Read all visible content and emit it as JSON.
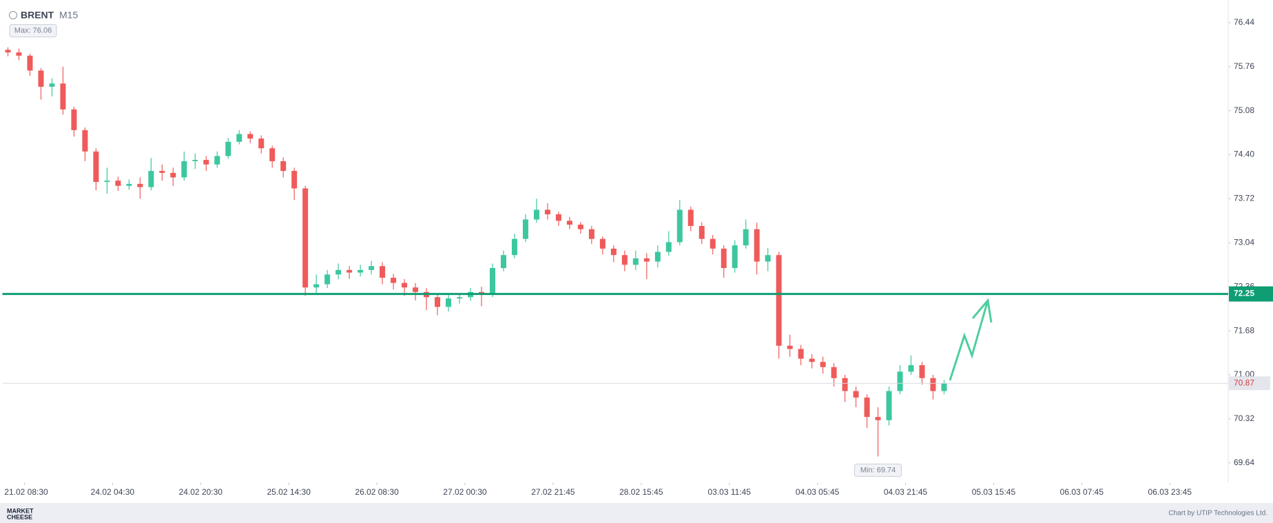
{
  "chart_data": {
    "type": "candlestick",
    "title": "BRENT",
    "subtitle": "M15",
    "up_color": "#3cc79f",
    "down_color": "#ef5a5a",
    "open": [
      76.02,
      75.98,
      75.93,
      75.7,
      75.45,
      75.5,
      75.1,
      74.78,
      74.45,
      73.98,
      74.0,
      73.92,
      73.95,
      73.9,
      74.15,
      74.12,
      74.05,
      74.3,
      74.32,
      74.25,
      74.38,
      74.6,
      74.72,
      74.65,
      74.5,
      74.3,
      74.15,
      73.88,
      72.35,
      72.4,
      72.55,
      72.62,
      72.58,
      72.62,
      72.68,
      72.5,
      72.42,
      72.35,
      72.28,
      72.2,
      72.05,
      72.18,
      72.2,
      72.28,
      72.25,
      72.65,
      72.85,
      73.1,
      73.4,
      73.55,
      73.48,
      73.38,
      73.32,
      73.25,
      73.1,
      72.95,
      72.85,
      72.7,
      72.8,
      72.75,
      72.9,
      73.05,
      73.55,
      73.3,
      73.1,
      72.95,
      72.65,
      73.0,
      73.25,
      72.75,
      72.85,
      71.45,
      71.4,
      71.25,
      71.2,
      71.12,
      70.95,
      70.75,
      70.65,
      70.35,
      70.3,
      70.75,
      71.05,
      71.15,
      70.95,
      70.75
    ],
    "high": [
      76.06,
      76.04,
      75.96,
      75.74,
      75.58,
      75.76,
      75.14,
      74.82,
      74.5,
      74.2,
      74.06,
      74.02,
      74.05,
      74.35,
      74.25,
      74.2,
      74.45,
      74.42,
      74.38,
      74.45,
      74.66,
      74.78,
      74.76,
      74.7,
      74.54,
      74.36,
      74.2,
      73.92,
      72.55,
      72.62,
      72.72,
      72.68,
      72.7,
      72.76,
      72.74,
      72.56,
      72.48,
      72.42,
      72.34,
      72.26,
      72.24,
      72.26,
      72.34,
      72.36,
      72.72,
      72.92,
      73.18,
      73.48,
      73.72,
      73.65,
      73.52,
      73.44,
      73.36,
      73.3,
      73.14,
      73.0,
      72.92,
      72.92,
      72.88,
      73.0,
      73.22,
      73.7,
      73.6,
      73.36,
      73.16,
      73.0,
      73.08,
      73.4,
      73.35,
      72.96,
      72.9,
      71.62,
      71.46,
      71.32,
      71.28,
      71.18,
      71.0,
      70.82,
      70.7,
      70.5,
      70.82,
      71.15,
      71.3,
      71.2,
      71.0,
      70.92
    ],
    "low": [
      75.92,
      75.86,
      75.62,
      75.25,
      75.3,
      75.02,
      74.68,
      74.3,
      73.85,
      73.8,
      73.84,
      73.86,
      73.72,
      73.85,
      74.0,
      73.92,
      74.0,
      74.18,
      74.15,
      74.2,
      74.34,
      74.56,
      74.58,
      74.42,
      74.2,
      74.05,
      73.7,
      72.22,
      72.25,
      72.34,
      72.48,
      72.48,
      72.52,
      72.55,
      72.4,
      72.32,
      72.22,
      72.15,
      72.0,
      71.92,
      71.98,
      72.1,
      72.14,
      72.06,
      72.2,
      72.6,
      72.8,
      73.05,
      73.35,
      73.4,
      73.3,
      73.25,
      73.18,
      73.02,
      72.86,
      72.74,
      72.6,
      72.62,
      72.48,
      72.66,
      72.84,
      73.0,
      73.22,
      73.02,
      72.86,
      72.5,
      72.58,
      72.95,
      72.55,
      72.6,
      71.25,
      71.28,
      71.15,
      71.1,
      71.02,
      70.82,
      70.58,
      70.5,
      70.18,
      69.74,
      70.22,
      70.7,
      71.0,
      70.85,
      70.62,
      70.7
    ],
    "close": [
      75.98,
      75.93,
      75.7,
      75.45,
      75.5,
      75.1,
      74.78,
      74.45,
      73.98,
      74.0,
      73.92,
      73.95,
      73.9,
      74.15,
      74.12,
      74.05,
      74.3,
      74.32,
      74.25,
      74.38,
      74.6,
      74.72,
      74.65,
      74.5,
      74.3,
      74.15,
      73.88,
      72.35,
      72.4,
      72.55,
      72.62,
      72.58,
      72.62,
      72.68,
      72.5,
      72.42,
      72.35,
      72.28,
      72.2,
      72.05,
      72.18,
      72.2,
      72.28,
      72.25,
      72.65,
      72.85,
      73.1,
      73.4,
      73.55,
      73.48,
      73.38,
      73.32,
      73.25,
      73.1,
      72.95,
      72.85,
      72.7,
      72.8,
      72.75,
      72.9,
      73.05,
      73.55,
      73.3,
      73.1,
      72.95,
      72.65,
      73.0,
      73.25,
      72.75,
      72.85,
      71.45,
      71.4,
      71.25,
      71.2,
      71.12,
      70.95,
      70.75,
      70.65,
      70.35,
      70.3,
      70.75,
      71.05,
      71.15,
      70.95,
      70.75,
      70.87
    ],
    "xlim": [
      0,
      111.3
    ],
    "xticks": [
      {
        "value": 2,
        "label": "21.02 08:30"
      },
      {
        "value": 10,
        "label": "24.02 04:30"
      },
      {
        "value": 18,
        "label": "24.02 20:30"
      },
      {
        "value": 26,
        "label": "25.02 14:30"
      },
      {
        "value": 34,
        "label": "26.02 08:30"
      },
      {
        "value": 42,
        "label": "27.02 00:30"
      },
      {
        "value": 50,
        "label": "27.02 21:45"
      },
      {
        "value": 58,
        "label": "28.02 15:45"
      },
      {
        "value": 66,
        "label": "03.03 11:45"
      },
      {
        "value": 74,
        "label": "04.03 05:45"
      },
      {
        "value": 82,
        "label": "04.03 21:45"
      },
      {
        "value": 90,
        "label": "05.03 15:45"
      },
      {
        "value": 98,
        "label": "06.03 07:45"
      },
      {
        "value": 106,
        "label": "06.03 23:45"
      }
    ],
    "ylim": [
      69.34,
      76.79
    ],
    "yticks": [
      76.44,
      75.76,
      75.08,
      {
        "value": 74.4,
        "label": "74.40"
      },
      73.72,
      73.04,
      72.36,
      71.68,
      {
        "value": 71,
        "label": "71.00"
      },
      70.32,
      69.64
    ],
    "level": {
      "value": 72.25,
      "color": "#0f9d73"
    },
    "last_price": 70.87,
    "annotations": [
      "Max: 76.06",
      "Min: 69.74"
    ]
  },
  "footer": {
    "logo": [
      "MARKET",
      "CHEESE"
    ],
    "credit": "Chart by UTIP Technologies Ltd."
  }
}
